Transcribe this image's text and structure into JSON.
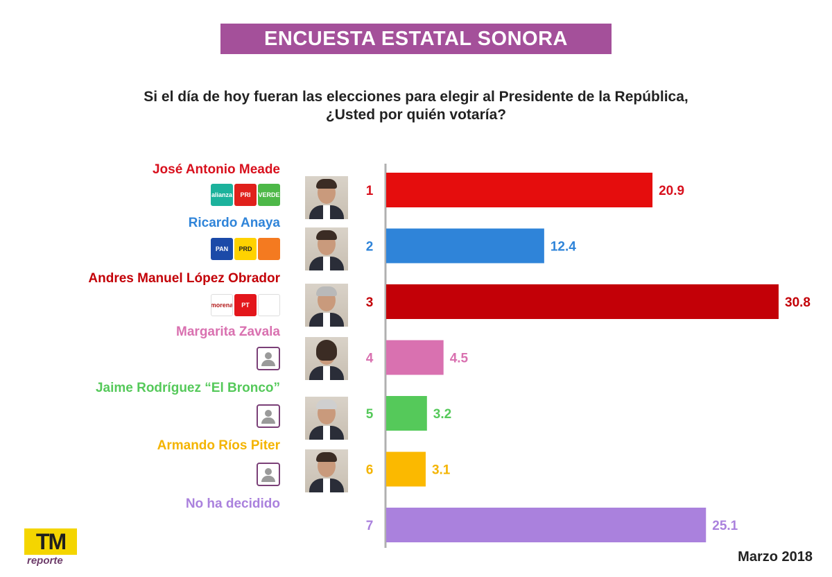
{
  "title": "ENCUESTA ESTATAL SONORA",
  "question_line1": "Si el día de hoy fueran las elecciones para elegir al Presidente de la República,",
  "question_line2": "¿Usted por quién votaría?",
  "date": "Marzo 2018",
  "brand": {
    "logo": "TM",
    "sub": "reporte"
  },
  "chart_data": {
    "type": "bar",
    "orientation": "horizontal",
    "categories": [
      "José Antonio Meade",
      "Ricardo Anaya",
      "Andres Manuel López Obrador",
      "Margarita Zavala",
      "Jaime Rodríguez “El Bronco”",
      "Armando Ríos Piter",
      "No ha decidido"
    ],
    "ranks": [
      "1",
      "2",
      "3",
      "4",
      "5",
      "6",
      "7"
    ],
    "values": [
      20.9,
      12.4,
      30.8,
      4.5,
      3.2,
      3.1,
      25.1
    ],
    "value_labels": [
      "20.9",
      "12.4",
      "30.8",
      "4.5",
      "3.2",
      "3.1",
      "25.1"
    ],
    "colors": [
      "#e50d0d",
      "#2f84d9",
      "#c30007",
      "#d971b0",
      "#55c95a",
      "#fbb900",
      "#aa81dd"
    ],
    "name_colors": [
      "#d8101d",
      "#2f84d9",
      "#c30007",
      "#d971b0",
      "#55c95a",
      "#f4b400",
      "#aa81dd"
    ],
    "grid": false,
    "legend": "none",
    "xlim": [
      0,
      30.8
    ]
  },
  "parties": [
    [
      {
        "label": "alianza",
        "color": "#1cb29c",
        "icon": "nueva-alianza-logo"
      },
      {
        "label": "PRI",
        "color": "#e0201b",
        "icon": "pri-logo"
      },
      {
        "label": "VERDE",
        "color": "#4db848",
        "icon": "pvem-logo"
      }
    ],
    [
      {
        "label": "PAN",
        "color": "#1b4aa8",
        "icon": "pan-logo"
      },
      {
        "label": "PRD",
        "color": "#ffd200",
        "icon": "prd-logo"
      },
      {
        "label": "",
        "color": "#f47a20",
        "icon": "movimiento-ciudadano-logo"
      }
    ],
    [
      {
        "label": "morena",
        "color": "#ffffff",
        "icon": "morena-logo"
      },
      {
        "label": "PT",
        "color": "#e3161b",
        "icon": "pt-logo"
      },
      {
        "label": "",
        "color": "#ffffff",
        "icon": "encuentro-social-logo"
      }
    ],
    [
      {
        "label": "",
        "color": "",
        "icon": "independent-candidate-icon"
      }
    ],
    [
      {
        "label": "",
        "color": "",
        "icon": "independent-candidate-icon"
      }
    ],
    [
      {
        "label": "",
        "color": "",
        "icon": "independent-candidate-icon"
      }
    ],
    []
  ]
}
